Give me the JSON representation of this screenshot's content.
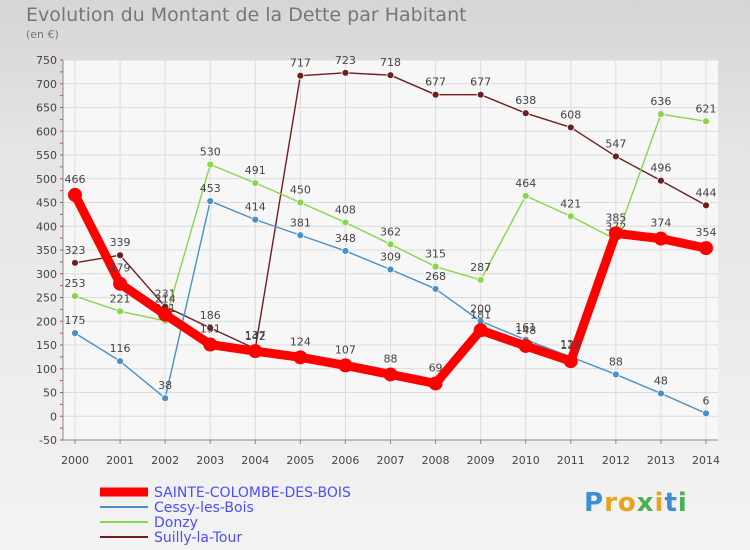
{
  "chart_data": {
    "type": "line",
    "title": "Evolution du Montant de la Dette par Habitant",
    "subtitle": "(en €)",
    "x": [
      "2000",
      "2001",
      "2002",
      "2003",
      "2004",
      "2005",
      "2006",
      "2007",
      "2008",
      "2009",
      "2010",
      "2011",
      "2012",
      "2013",
      "2014"
    ],
    "ylim": [
      -50,
      750
    ],
    "yticks": [
      -50,
      0,
      50,
      100,
      150,
      200,
      250,
      300,
      350,
      400,
      450,
      500,
      550,
      600,
      650,
      700,
      750
    ],
    "series": [
      {
        "name": "SAINTE-COLOMBE-DES-BOIS",
        "color": "#ff0000",
        "values": [
          466,
          279,
          214,
          151,
          137,
          124,
          107,
          88,
          69,
          181,
          148,
          116,
          385,
          374,
          354
        ]
      },
      {
        "name": "Cessy-les-Bois",
        "color": "#4a90c8",
        "values": [
          175,
          116,
          38,
          453,
          414,
          381,
          348,
          309,
          268,
          200,
          161,
          125,
          88,
          48,
          6
        ]
      },
      {
        "name": "Donzy",
        "color": "#88d64a",
        "values": [
          253,
          221,
          201,
          530,
          491,
          450,
          408,
          362,
          315,
          287,
          464,
          421,
          372,
          636,
          621
        ]
      },
      {
        "name": "Suilly-la-Tour",
        "color": "#6e1e1e",
        "values": [
          323,
          339,
          231,
          186,
          142,
          717,
          723,
          718,
          677,
          677,
          638,
          608,
          547,
          496,
          444
        ]
      }
    ]
  },
  "logo": {
    "letters": [
      "P",
      "r",
      "o",
      "x",
      "i",
      "t",
      "i"
    ],
    "colors": [
      "#3d8fd1",
      "#e8a21e",
      "#e8a21e",
      "#4caf50",
      "#e8a21e",
      "#3d8fd1",
      "#4caf50"
    ]
  }
}
